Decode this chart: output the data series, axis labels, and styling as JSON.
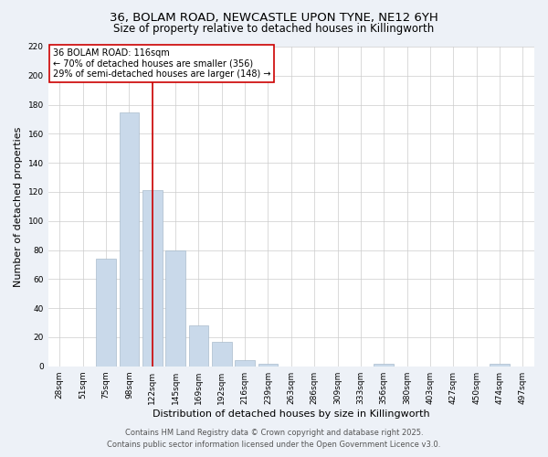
{
  "title_line1": "36, BOLAM ROAD, NEWCASTLE UPON TYNE, NE12 6YH",
  "title_line2": "Size of property relative to detached houses in Killingworth",
  "xlabel": "Distribution of detached houses by size in Killingworth",
  "ylabel": "Number of detached properties",
  "bins": [
    "28sqm",
    "51sqm",
    "75sqm",
    "98sqm",
    "122sqm",
    "145sqm",
    "169sqm",
    "192sqm",
    "216sqm",
    "239sqm",
    "263sqm",
    "286sqm",
    "309sqm",
    "333sqm",
    "356sqm",
    "380sqm",
    "403sqm",
    "427sqm",
    "450sqm",
    "474sqm",
    "497sqm"
  ],
  "values": [
    0,
    0,
    74,
    175,
    121,
    80,
    28,
    17,
    4,
    2,
    0,
    0,
    0,
    0,
    2,
    0,
    0,
    0,
    0,
    2,
    0
  ],
  "bar_color": "#c9d9ea",
  "bar_edge_color": "#aabccc",
  "highlight_bin_index": 4,
  "highlight_color": "#cc0000",
  "annotation_text": "36 BOLAM ROAD: 116sqm\n← 70% of detached houses are smaller (356)\n29% of semi-detached houses are larger (148) →",
  "annotation_box_color": "#ffffff",
  "annotation_box_edge": "#cc0000",
  "ylim": [
    0,
    220
  ],
  "yticks": [
    0,
    20,
    40,
    60,
    80,
    100,
    120,
    140,
    160,
    180,
    200,
    220
  ],
  "footer_line1": "Contains HM Land Registry data © Crown copyright and database right 2025.",
  "footer_line2": "Contains public sector information licensed under the Open Government Licence v3.0.",
  "bg_color": "#edf1f7",
  "plot_bg_color": "#ffffff",
  "grid_color": "#cccccc",
  "title_fontsize": 9.5,
  "subtitle_fontsize": 8.5,
  "axis_label_fontsize": 8,
  "tick_fontsize": 6.5,
  "annotation_fontsize": 7,
  "footer_fontsize": 6
}
